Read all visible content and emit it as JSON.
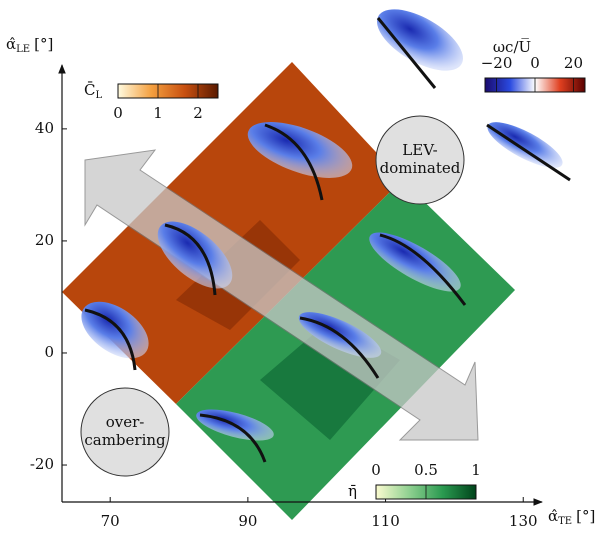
{
  "chart_data": {
    "type": "contour",
    "x_label": {
      "symbol": "α̂",
      "sub": "TE",
      "unit": "[°]"
    },
    "y_label": {
      "symbol": "α̂",
      "sub": "LE",
      "unit": "[°]"
    },
    "xlim": [
      63,
      132
    ],
    "ylim": [
      -26.6,
      51.4
    ],
    "xticks": [
      70,
      90,
      110,
      130
    ],
    "yticks": [
      -20,
      0,
      20,
      40
    ],
    "colorbars": [
      {
        "symbol": "C̄",
        "sub": "L",
        "lim": [
          0,
          2.5
        ],
        "ticks": [
          0,
          1,
          2
        ],
        "colors": [
          "#fffbe0",
          "#f4a040",
          "#c85010",
          "#5a1a00"
        ]
      },
      {
        "symbol": "η̄",
        "sub": "",
        "lim": [
          0,
          1
        ],
        "ticks": [
          0,
          0.5,
          1
        ],
        "colors": [
          "#fbfbd0",
          "#8fd090",
          "#2a9a50",
          "#00441b"
        ]
      },
      {
        "symbol": "ωc/U̅",
        "sub": "",
        "lim": [
          -26,
          26
        ],
        "ticks": [
          {
            "value": -20,
            "label": "−20"
          },
          0,
          20
        ],
        "colors": [
          "#1a0a6e",
          "#2a4ae0",
          "#ffffff",
          "#e04020",
          "#5a0000"
        ]
      }
    ],
    "annotations": [
      {
        "lines": [
          "LEV-",
          "dominated"
        ]
      },
      {
        "lines": [
          "over-",
          "cambering"
        ]
      }
    ]
  }
}
